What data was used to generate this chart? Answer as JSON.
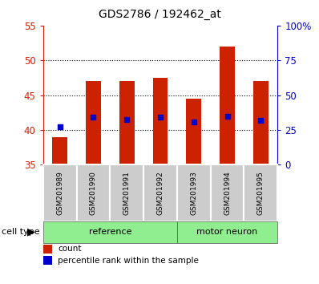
{
  "title": "GDS2786 / 192462_at",
  "samples": [
    "GSM201989",
    "GSM201990",
    "GSM201991",
    "GSM201992",
    "GSM201993",
    "GSM201994",
    "GSM201995"
  ],
  "count_values": [
    39.0,
    47.0,
    47.0,
    47.5,
    44.5,
    52.0,
    47.0
  ],
  "percentile_values_left": [
    40.5,
    41.8,
    41.5,
    41.8,
    41.2,
    42.0,
    41.4
  ],
  "ylim_left": [
    35,
    55
  ],
  "ylim_right": [
    0,
    100
  ],
  "yticks_left": [
    35,
    40,
    45,
    50,
    55
  ],
  "ytick_labels_left": [
    "35",
    "40",
    "45",
    "50",
    "55"
  ],
  "yticks_right": [
    0,
    25,
    50,
    75,
    100
  ],
  "ytick_labels_right": [
    "0",
    "25",
    "50",
    "75",
    "100%"
  ],
  "grid_yticks": [
    40,
    45,
    50
  ],
  "bar_color": "#cc2200",
  "bar_width": 0.45,
  "bar_baseline": 35,
  "percentile_color": "#0000cc",
  "percentile_marker_size": 25,
  "left_tick_color": "#cc2200",
  "right_tick_color": "#0000cc",
  "title_fontsize": 10,
  "reference_group_count": 4,
  "group_label_reference": "reference",
  "group_label_motor": "motor neuron",
  "group_color": "#90ee90",
  "sample_box_color": "#cccccc",
  "legend_count_label": "count",
  "legend_percentile_label": "percentile rank within the sample",
  "cell_type_label": "cell type"
}
